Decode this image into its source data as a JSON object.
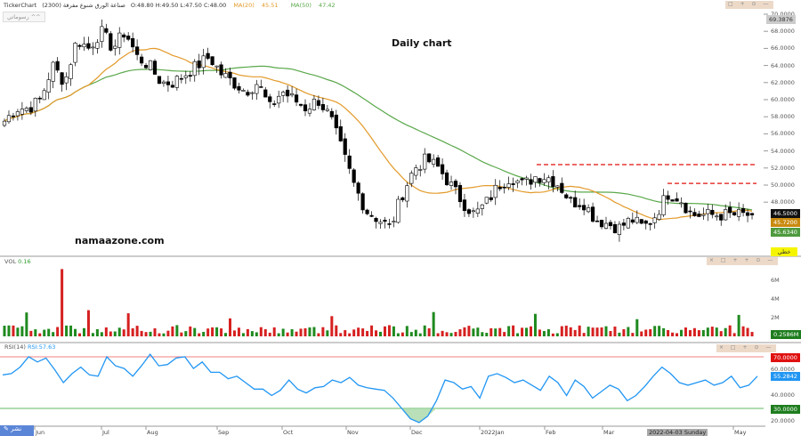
{
  "header": {
    "app": "TickerChart",
    "symbol": "صناعة الورق شنوع مفرقة (2300)",
    "ohlc": "O:48.80  H:49.50  L:47.50  C:48.00",
    "ma20_label": "MA(20)",
    "ma20_value": "45.51",
    "ma50_label": "MA(50)",
    "ma50_value": "47.42",
    "toolbar_button": "رسوماتي ^^"
  },
  "colors": {
    "up": "#ffffff",
    "down": "#000000",
    "ma20": "#e39a2a",
    "ma50": "#5aa84a",
    "rsi": "#2196f3",
    "vol_up": "#1f8a1f",
    "vol_down": "#d62020",
    "level_line": "#e53935"
  },
  "watermark": {
    "title": "Daily chart",
    "site": "namaazone.com"
  },
  "price_axis": {
    "ticks": [
      "70.0000",
      "68.0000",
      "66.0000",
      "64.0000",
      "62.0000",
      "60.0000",
      "58.0000",
      "56.0000",
      "54.0000",
      "52.0000",
      "50.0000",
      "48.0000"
    ],
    "high_label": "69.3876",
    "last_price": "46.5000",
    "ma20_tag": "45.7200",
    "ma50_tag": "45.6340",
    "linear_button": "خطي"
  },
  "chart_data": {
    "type": "candlestick",
    "ylim": [
      44,
      70
    ],
    "resistance_levels": [
      52.4,
      50.2
    ],
    "closes": [
      57.5,
      59,
      59,
      60,
      64,
      62,
      67,
      66,
      68,
      66,
      68,
      65,
      64,
      62,
      62,
      63,
      64,
      65,
      63,
      62,
      61,
      62,
      59,
      61,
      60,
      59,
      60,
      58,
      54,
      50,
      47,
      46,
      45,
      49,
      52,
      53,
      52,
      50,
      48,
      46.5,
      48,
      50,
      51,
      50,
      51,
      51,
      50,
      48,
      48,
      46,
      45.5,
      45,
      46,
      45,
      46.5,
      49,
      48.5,
      46.5,
      46.5,
      46.5,
      46.5,
      46.5,
      46.5
    ],
    "volume": {
      "label": "VOL",
      "value": "0.16",
      "ticks": [
        "6M",
        "4M",
        "2M"
      ],
      "last_tag": "0.2586M"
    },
    "rsi": {
      "label": "RSI(14)",
      "value": "RSI:57.63",
      "levels": [
        70,
        30
      ],
      "ticks": [
        "70.0000",
        "60.0000",
        "50.0000",
        "40.0000",
        "30.0000",
        "20.0000"
      ],
      "last_tag": "55.2842",
      "values": [
        56,
        57,
        62,
        70,
        66,
        69,
        60,
        50,
        57,
        62,
        56,
        55,
        70,
        63,
        61,
        55,
        63,
        72,
        63,
        64,
        69,
        70,
        61,
        66,
        58,
        58,
        53,
        55,
        50,
        45,
        45,
        40,
        44,
        52,
        45,
        42,
        46,
        47,
        52,
        50,
        54,
        48,
        46,
        45,
        44,
        38,
        30,
        22,
        19,
        24,
        36,
        52,
        50,
        45,
        47,
        38,
        55,
        57,
        54,
        50,
        52,
        48,
        44,
        55,
        50,
        40,
        52,
        47,
        38,
        43,
        48,
        45,
        36,
        40,
        47,
        55,
        62,
        57,
        50,
        48,
        50,
        52,
        48,
        50,
        55,
        46,
        48,
        55
      ]
    }
  },
  "time_axis": {
    "labels": [
      "Jun",
      "Jul",
      "Aug",
      "Sep",
      "Oct",
      "Nov",
      "Dec",
      "2022Jan",
      "Feb",
      "Mar",
      "May"
    ],
    "crosshair": "2022-04-03 Sunday"
  },
  "publish_button": "نشر"
}
